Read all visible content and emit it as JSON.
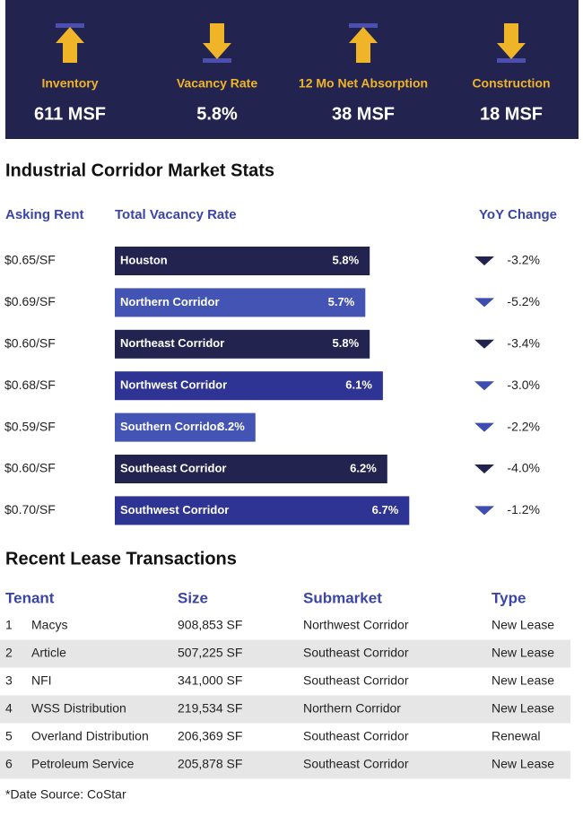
{
  "stats": [
    {
      "label": "Inventory",
      "value": "611 MSF",
      "direction": "up"
    },
    {
      "label": "Vacancy Rate",
      "value": "5.8%",
      "direction": "down"
    },
    {
      "label": "12 Mo Net Absorption",
      "value": "38 MSF",
      "direction": "up"
    },
    {
      "label": "Construction",
      "value": "18 MSF",
      "direction": "down"
    }
  ],
  "chart_data": {
    "type": "bar",
    "title": "Industrial Corridor Market Stats",
    "column_headers": [
      "Asking Rent",
      "Total Vacancy Rate",
      "YoY Change"
    ],
    "categories": [
      "Houston",
      "Northern Corridor",
      "Northeast Corridor",
      "Northwest Corridor",
      "Southern Corridor",
      "Southeast Corridor",
      "Southwest Corridor"
    ],
    "values": [
      5.8,
      5.7,
      5.8,
      6.1,
      3.2,
      6.2,
      6.7
    ],
    "value_labels": [
      "5.8%",
      "5.7%",
      "5.8%",
      "6.1%",
      "3.2%",
      "6.2%",
      "6.7%"
    ],
    "colors": [
      "#22244f",
      "#4454b4",
      "#22244f",
      "#2e3493",
      "#4454b4",
      "#22244f",
      "#2e3493"
    ],
    "asking_rent": [
      "$0.65/SF",
      "$0.69/SF",
      "$0.60/SF",
      "$0.68/SF",
      "$0.59/SF",
      "$0.60/SF",
      "$0.70/SF"
    ],
    "yoy_change": [
      "-3.2%",
      "-5.2%",
      "-3.4%",
      "-3.0%",
      "-2.2%",
      "-4.0%",
      "-1.2%"
    ]
  },
  "table": {
    "title": "Recent Lease Transactions",
    "columns": [
      "Tenant",
      "Size",
      "Submarket",
      "Type"
    ],
    "rows": [
      [
        "1",
        "Macys",
        "908,853 SF",
        "Northwest Corridor",
        "New Lease"
      ],
      [
        "2",
        "Article",
        "507,225 SF",
        "Southeast Corridor",
        "New Lease"
      ],
      [
        "3",
        "NFI",
        "341,000 SF",
        "Southeast Corridor",
        "New Lease"
      ],
      [
        "4",
        "WSS Distribution",
        "219,534 SF",
        "Northern Corridor",
        "New Lease"
      ],
      [
        "5",
        "Overland Distribution",
        "206,369 SF",
        "Southeast Corridor",
        "Renewal"
      ],
      [
        "6",
        "Petroleum Service",
        "205,878 SF",
        "Southeast Corridor",
        "New Lease"
      ]
    ]
  },
  "footnote": "*Date Source: CoStar"
}
